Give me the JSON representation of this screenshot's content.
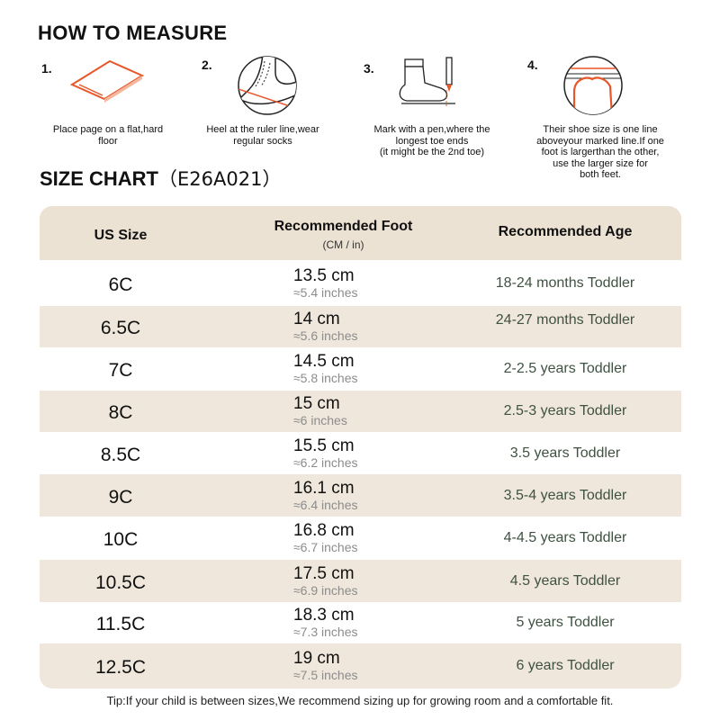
{
  "how_to_measure": {
    "title": "HOW TO MEASURE",
    "steps": [
      {
        "num": "1.",
        "caption_lines": [
          "Place page on a flat,hard",
          "floor"
        ]
      },
      {
        "num": "2.",
        "caption_lines": [
          "Heel at the ruler line,wear",
          "regular socks"
        ]
      },
      {
        "num": "3.",
        "caption_lines": [
          "Mark with a pen,where the",
          "longest toe ends",
          "(it might be the 2nd toe)"
        ]
      },
      {
        "num": "4.",
        "caption_lines": [
          "Their shoe size is one line",
          "aboveyour marked line.If one",
          "foot is largerthan the other,",
          "use the larger size for",
          "both feet."
        ]
      }
    ]
  },
  "size_chart": {
    "title": "SIZE CHART",
    "code": "（E26A021）",
    "headers": {
      "us_size": "US Size",
      "foot": "Recommended Foot",
      "foot_unit": "(CM / in)",
      "age": "Recommended Age"
    },
    "rows": [
      {
        "size": "6C",
        "cm": "13.5 cm",
        "inches": "≈5.4 inches",
        "age": "18-24 months Toddler"
      },
      {
        "size": "6.5C",
        "cm": "14 cm",
        "inches": "≈5.6 inches",
        "age": "24-27 months Toddler"
      },
      {
        "size": "7C",
        "cm": "14.5 cm",
        "inches": "≈5.8 inches",
        "age": "2-2.5 years Toddler"
      },
      {
        "size": "8C",
        "cm": "15 cm",
        "inches": "≈6 inches",
        "age": "2.5-3 years Toddler"
      },
      {
        "size": "8.5C",
        "cm": "15.5 cm",
        "inches": "≈6.2 inches",
        "age": "3.5 years Toddler"
      },
      {
        "size": "9C",
        "cm": "16.1 cm",
        "inches": "≈6.4 inches",
        "age": "3.5-4 years Toddler"
      },
      {
        "size": "10C",
        "cm": "16.8 cm",
        "inches": "≈6.7 inches",
        "age": "4-4.5 years Toddler"
      },
      {
        "size": "10.5C",
        "cm": "17.5 cm",
        "inches": "≈6.9 inches",
        "age": "4.5 years Toddler"
      },
      {
        "size": "11.5C",
        "cm": "18.3 cm",
        "inches": "≈7.3 inches",
        "age": "5 years Toddler"
      },
      {
        "size": "12.5C",
        "cm": "19 cm",
        "inches": "≈7.5 inches",
        "age": "6 years Toddler"
      }
    ]
  },
  "tip": "Tip:If your child is between sizes,We recommend sizing up for growing room and a comfortable fit.",
  "colors": {
    "header_bg": "#ece2d3",
    "row_shade": "#efe7db",
    "accent": "#e8572a",
    "age_text": "#3f5242"
  }
}
